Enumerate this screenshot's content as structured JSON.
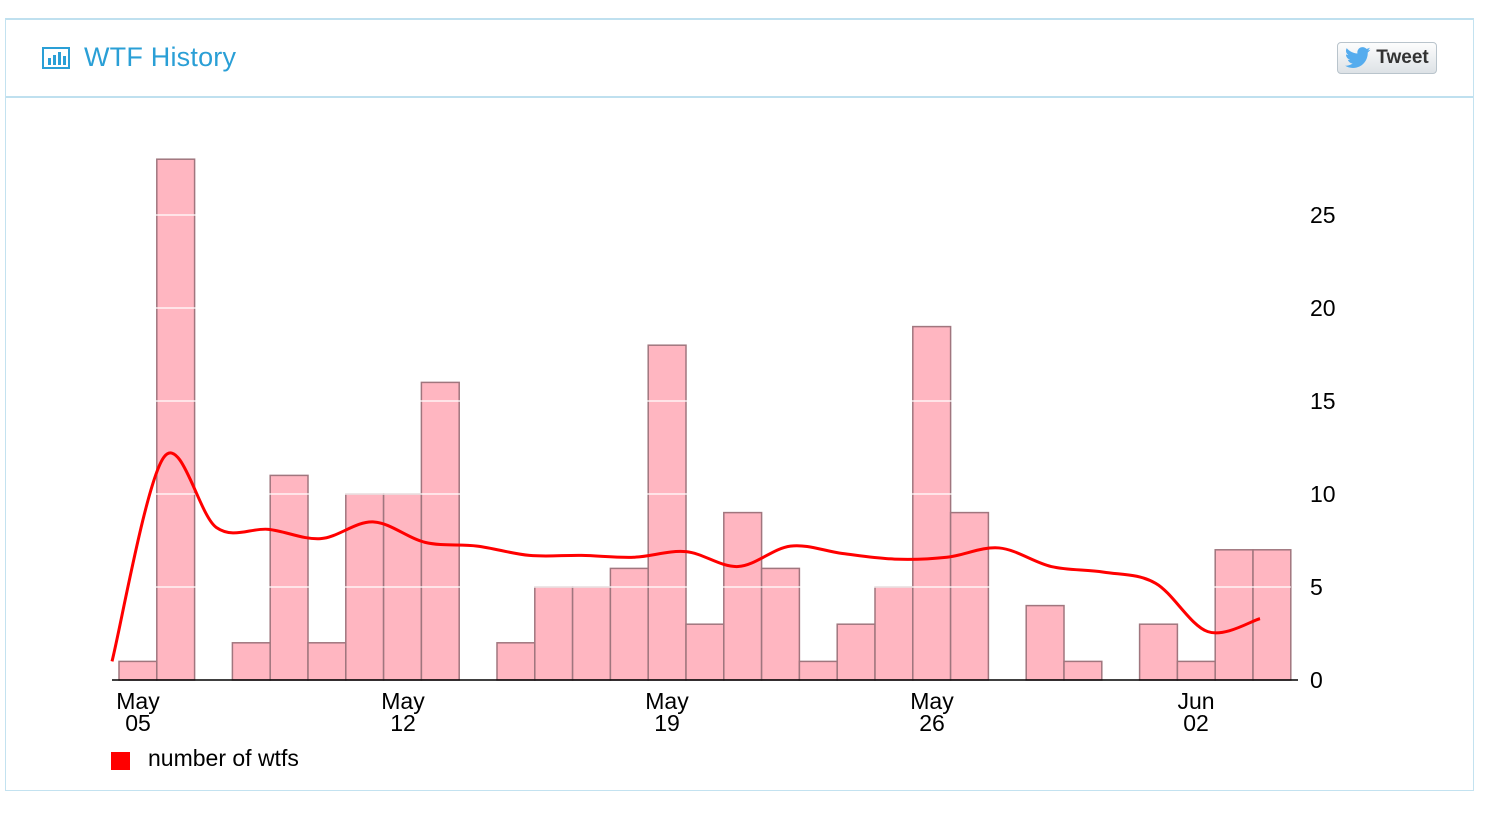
{
  "panel": {
    "title": "WTF History",
    "title_icon": "bar-chart-icon",
    "tweet_label": "Tweet",
    "tweet_icon": "twitter-bird-icon"
  },
  "colors": {
    "bar_fill": "#ffb6c1",
    "bar_stroke": "#a0767e",
    "line": "#ff0000",
    "title": "#2a9fd6",
    "legend_swatch": "#ff0000"
  },
  "chart_data": {
    "type": "bar",
    "x": [
      "2014-05-05",
      "2014-05-06",
      "2014-05-07",
      "2014-05-08",
      "2014-05-09",
      "2014-05-10",
      "2014-05-11",
      "2014-05-12",
      "2014-05-13",
      "2014-05-14",
      "2014-05-15",
      "2014-05-16",
      "2014-05-17",
      "2014-05-18",
      "2014-05-19",
      "2014-05-20",
      "2014-05-21",
      "2014-05-22",
      "2014-05-23",
      "2014-05-24",
      "2014-05-25",
      "2014-05-26",
      "2014-05-27",
      "2014-05-28",
      "2014-05-29",
      "2014-05-30",
      "2014-05-31",
      "2014-06-01",
      "2014-06-02",
      "2014-06-03",
      "2014-06-04"
    ],
    "values": [
      1,
      28,
      0,
      2,
      11,
      2,
      10,
      10,
      16,
      0,
      2,
      5,
      5,
      6,
      18,
      3,
      9,
      6,
      1,
      3,
      5,
      19,
      9,
      0,
      4,
      1,
      0,
      3,
      1,
      7,
      7
    ],
    "smoothed_line": [
      1,
      12,
      8.2,
      8.1,
      7.6,
      8.5,
      7.4,
      7.2,
      6.7,
      6.7,
      6.6,
      6.9,
      6.1,
      7.2,
      6.8,
      6.5,
      6.6,
      7.1,
      6.1,
      5.8,
      5.2,
      2.6,
      3.3
    ],
    "x_ticks": [
      {
        "month": "May",
        "day": "05"
      },
      {
        "month": "May",
        "day": "12"
      },
      {
        "month": "May",
        "day": "19"
      },
      {
        "month": "May",
        "day": "26"
      },
      {
        "month": "Jun",
        "day": "02"
      }
    ],
    "y_ticks": [
      "0",
      "5",
      "10",
      "15",
      "20",
      "25"
    ],
    "ylim": [
      0,
      28
    ],
    "y_axis_side": "right",
    "grid": "horizontal white lines over bars",
    "legend": [
      {
        "label": "number of wtfs",
        "color": "#ff0000"
      }
    ],
    "legend_position": "bottom-left"
  }
}
